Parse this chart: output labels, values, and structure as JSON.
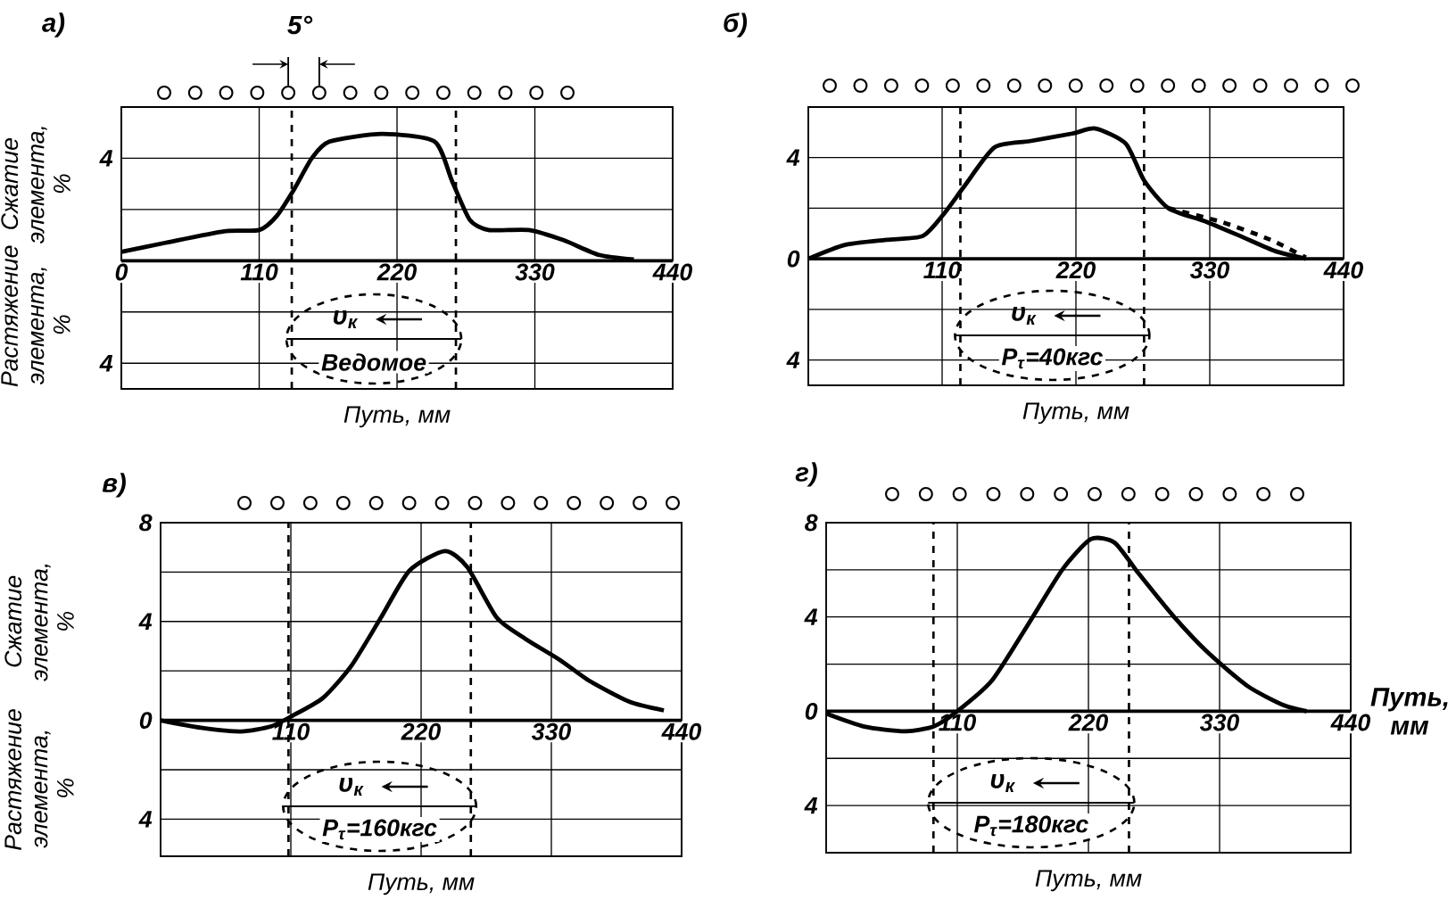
{
  "chart_data": [
    {
      "type": "line",
      "title": "а)",
      "xlabel": "Путь, мм",
      "ylabel": "Сжатие элемента, %",
      "xlim": [
        0,
        440
      ],
      "ylim": [
        -5,
        6
      ],
      "xticks": [
        0,
        110,
        220,
        330,
        440
      ],
      "yticks": [
        {
          "value": -4,
          "label": "4"
        },
        {
          "value": -2,
          "label": null
        },
        {
          "value": 2,
          "label": null
        },
        4
      ],
      "grid": true,
      "x": [
        0,
        35,
        82,
        110,
        124,
        138,
        152,
        166,
        208,
        250,
        264,
        278,
        293,
        325,
        353,
        381,
        409
      ],
      "series": [
        {
          "color": "#000000",
          "values": [
            0.35,
            0.7,
            1.15,
            1.2,
            1.75,
            2.8,
            4,
            4.65,
            4.95,
            4.65,
            3.1,
            1.6,
            1.2,
            1.2,
            0.8,
            0.23,
            0.05
          ]
        }
      ],
      "ref_lines": [
        {
          "axis": "x",
          "value": 136,
          "line_style": "dashed"
        },
        {
          "axis": "x",
          "value": 267,
          "line_style": "dashed"
        }
      ],
      "annotations": [
        "υ$_{к}$",
        "Ведомое",
        "Растяжение элемента, %",
        "5°"
      ]
    },
    {
      "type": "line",
      "title": "б)",
      "xlabel": "Путь, мм",
      "xlim": [
        0,
        440
      ],
      "ylim": [
        -5,
        6
      ],
      "xticks": [
        110,
        220,
        330,
        440
      ],
      "yticks": [
        {
          "value": -4,
          "label": "4"
        },
        {
          "value": -2,
          "label": null
        },
        0,
        {
          "value": 2,
          "label": null
        },
        4
      ],
      "grid": true,
      "x": [
        0,
        30,
        64,
        94,
        111,
        128,
        153,
        182,
        217,
        236,
        261,
        276,
        296,
        325,
        355,
        384,
        409
      ],
      "series": [
        {
          "color": "#000000",
          "values": [
            0,
            0.55,
            0.75,
            0.9,
            1.75,
            2.85,
            4.4,
            4.65,
            4.95,
            5.15,
            4.55,
            3.1,
            2.0,
            1.5,
            0.9,
            0.3,
            0
          ]
        },
        {
          "color": "#000000",
          "line_style": "dashed",
          "x": [
            296,
            340,
            380,
            409
          ],
          "values": [
            2.0,
            1.45,
            0.75,
            0.05
          ]
        }
      ],
      "ref_lines": [
        {
          "axis": "x",
          "value": 125,
          "line_style": "dashed"
        },
        {
          "axis": "x",
          "value": 276,
          "line_style": "dashed"
        }
      ],
      "annotations": [
        "υ$_{к}$",
        "P$_{τ}$=40кгс"
      ]
    },
    {
      "type": "line",
      "title": "в)",
      "xlabel": "Путь, мм",
      "ylabel": "Сжатие элемента, %",
      "xlim": [
        0,
        440
      ],
      "ylim": [
        -5.5,
        8
      ],
      "xticks": [
        110,
        220,
        330,
        440
      ],
      "yticks": [
        {
          "value": -4,
          "label": "4"
        },
        {
          "value": -2,
          "label": null
        },
        0,
        {
          "value": 2,
          "label": null
        },
        4,
        {
          "value": 6,
          "label": null
        },
        8
      ],
      "grid": true,
      "x": [
        0,
        34,
        68,
        93,
        110,
        137,
        161,
        186,
        210,
        240,
        259,
        284,
        308,
        337,
        362,
        396,
        425
      ],
      "series": [
        {
          "color": "#000000",
          "values": [
            0,
            -0.3,
            -0.45,
            -0.25,
            0.15,
            0.9,
            2.2,
            4.15,
            6.05,
            6.85,
            6.2,
            4.15,
            3.3,
            2.45,
            1.6,
            0.75,
            0.4
          ]
        }
      ],
      "ref_lines": [
        {
          "axis": "x",
          "value": 108,
          "line_style": "dashed"
        },
        {
          "axis": "x",
          "value": 262,
          "line_style": "dashed"
        }
      ],
      "annotations": [
        "υ$_{к}$",
        "P$_{τ}$=160кгс",
        "Растяжение элемента, %"
      ]
    },
    {
      "type": "line",
      "title": "г)",
      "xlabel": "Путь, мм",
      "xlim": [
        0,
        440
      ],
      "ylim": [
        -6,
        8
      ],
      "xticks": [
        110,
        220,
        330,
        440
      ],
      "yticks": [
        {
          "value": -4,
          "label": "4"
        },
        {
          "value": -2,
          "label": null
        },
        0,
        {
          "value": 2,
          "label": null
        },
        4,
        {
          "value": 6,
          "label": null
        },
        8
      ],
      "grid": true,
      "x": [
        0,
        32,
        66,
        90,
        110,
        139,
        169,
        198,
        222,
        242,
        262,
        291,
        320,
        354,
        384,
        403
      ],
      "series": [
        {
          "color": "#000000",
          "values": [
            -0.1,
            -0.65,
            -0.85,
            -0.65,
            0,
            1.3,
            3.65,
            6,
            7.3,
            7.15,
            5.85,
            4.05,
            2.5,
            1.05,
            0.25,
            0
          ]
        }
      ],
      "ref_lines": [
        {
          "axis": "x",
          "value": 90,
          "line_style": "dashed"
        },
        {
          "axis": "x",
          "value": 254,
          "line_style": "dashed"
        }
      ],
      "annotations": [
        "υ$_{к}$",
        "P$_{τ}$=180кгс",
        "Путь, мм"
      ]
    }
  ]
}
